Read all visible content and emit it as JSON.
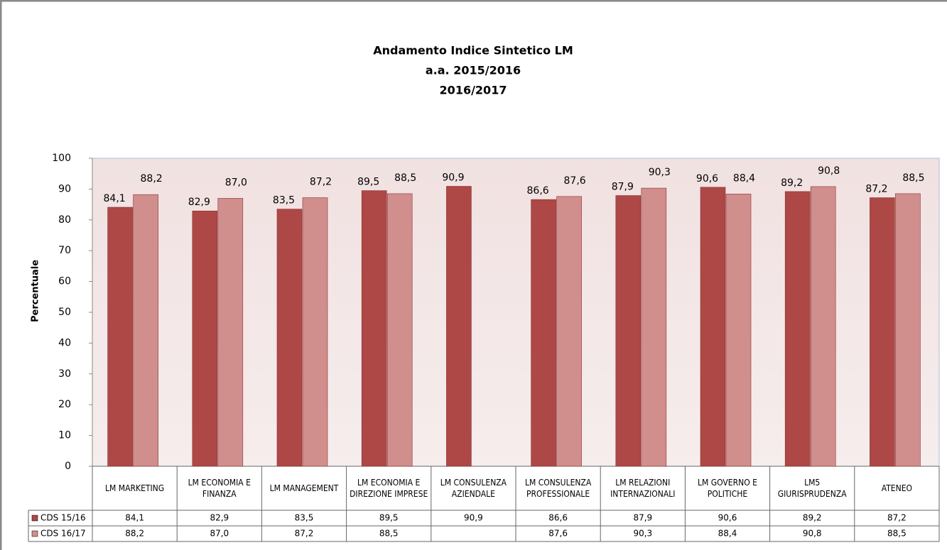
{
  "chart_data": {
    "type": "bar",
    "title": [
      "Andamento Indice Sintetico LM",
      "a.a. 2015/2016",
      "2016/2017"
    ],
    "y_label": "Percentuale",
    "categories": [
      "LM MARKETING",
      "LM ECONOMIA E FINANZA",
      "LM MANAGEMENT",
      "LM ECONOMIA E DIREZIONE IMPRESE",
      "LM CONSULENZA AZIENDALE",
      "LM CONSULENZA PROFESSIONALE",
      "LM RELAZIONI INTERNAZIONALI",
      "LM GOVERNO E POLITICHE",
      "LM5 GIURISPRUDENZA",
      "ATENEO"
    ],
    "series": [
      {
        "name": "CDS 15/16",
        "color": "#ad4846",
        "values": [
          84.1,
          82.9,
          83.5,
          89.5,
          90.9,
          86.6,
          87.9,
          90.6,
          89.2,
          87.2
        ],
        "value_labels": [
          "84,1",
          "82,9",
          "83,5",
          "89,5",
          "90,9",
          "86,6",
          "87,9",
          "90,6",
          "89,2",
          "87,2"
        ]
      },
      {
        "name": "CDS 16/17",
        "color": "#d08e8d",
        "values": [
          88.2,
          87.0,
          87.2,
          88.5,
          null,
          87.6,
          90.3,
          88.4,
          90.8,
          88.5
        ],
        "value_labels": [
          "88,2",
          "87,0",
          "87,2",
          "88,5",
          null,
          "87,6",
          "90,3",
          "88,4",
          "90,8",
          "88,5"
        ]
      }
    ],
    "ylim": [
      0,
      100
    ],
    "yticks": [
      0,
      10,
      20,
      30,
      40,
      50,
      60,
      70,
      80,
      90,
      100
    ],
    "grid": false
  }
}
